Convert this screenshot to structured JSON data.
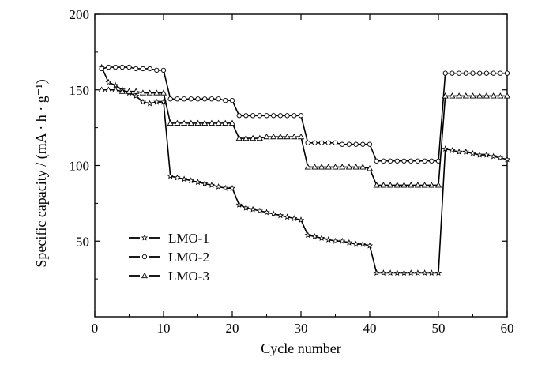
{
  "chart_data": {
    "type": "line",
    "title": "",
    "xlabel": "Cycle number",
    "ylabel": "Specific capacity / (mA · h · g⁻¹)",
    "xlim": [
      0,
      60
    ],
    "ylim": [
      0,
      200
    ],
    "x_ticks": [
      0,
      10,
      20,
      30,
      40,
      50,
      60
    ],
    "x_tick_labels": [
      "0",
      "10",
      "20",
      "30",
      "40",
      "50",
      "60"
    ],
    "y_ticks": [
      50,
      100,
      150,
      200
    ],
    "y_tick_labels": [
      "50",
      "100",
      "150",
      "200"
    ],
    "grid": false,
    "legend_position": "lower-left",
    "x": [
      1,
      2,
      3,
      4,
      5,
      6,
      7,
      8,
      9,
      10,
      11,
      12,
      13,
      14,
      15,
      16,
      17,
      18,
      19,
      20,
      21,
      22,
      23,
      24,
      25,
      26,
      27,
      28,
      29,
      30,
      31,
      32,
      33,
      34,
      35,
      36,
      37,
      38,
      39,
      40,
      41,
      42,
      43,
      44,
      45,
      46,
      47,
      48,
      49,
      50,
      51,
      52,
      53,
      54,
      55,
      56,
      57,
      58,
      59,
      60
    ],
    "series": [
      {
        "name": "LMO-1",
        "marker": "star",
        "values": [
          165,
          155,
          153,
          150,
          148,
          146,
          142,
          141,
          142,
          142,
          93,
          92,
          91,
          90,
          89,
          88,
          87,
          86,
          85,
          85,
          74,
          72,
          71,
          70,
          69,
          68,
          67,
          66,
          65,
          64,
          54,
          53,
          52,
          51,
          50,
          50,
          49,
          48,
          48,
          47,
          29,
          29,
          29,
          29,
          29,
          29,
          29,
          29,
          29,
          29,
          111,
          110,
          109,
          109,
          108,
          107,
          107,
          106,
          105,
          104
        ]
      },
      {
        "name": "LMO-2",
        "marker": "circle",
        "values": [
          164,
          165,
          165,
          165,
          165,
          164,
          164,
          164,
          163,
          163,
          144,
          144,
          144,
          144,
          144,
          144,
          144,
          144,
          143,
          143,
          133,
          133,
          133,
          133,
          133,
          133,
          133,
          133,
          133,
          133,
          115,
          115,
          115,
          115,
          115,
          114,
          114,
          114,
          114,
          114,
          103,
          103,
          103,
          103,
          103,
          103,
          103,
          103,
          103,
          103,
          161,
          161,
          161,
          161,
          161,
          161,
          161,
          161,
          161,
          161
        ]
      },
      {
        "name": "LMO-3",
        "marker": "triangle",
        "values": [
          150,
          150,
          150,
          149,
          149,
          149,
          148,
          148,
          148,
          148,
          128,
          128,
          128,
          128,
          128,
          128,
          128,
          128,
          128,
          128,
          118,
          118,
          118,
          118,
          119,
          119,
          119,
          119,
          119,
          119,
          99,
          99,
          99,
          99,
          99,
          99,
          99,
          99,
          99,
          98,
          87,
          87,
          87,
          87,
          87,
          87,
          87,
          87,
          87,
          87,
          146,
          146,
          146,
          146,
          146,
          146,
          146,
          146,
          146,
          146
        ]
      }
    ]
  }
}
